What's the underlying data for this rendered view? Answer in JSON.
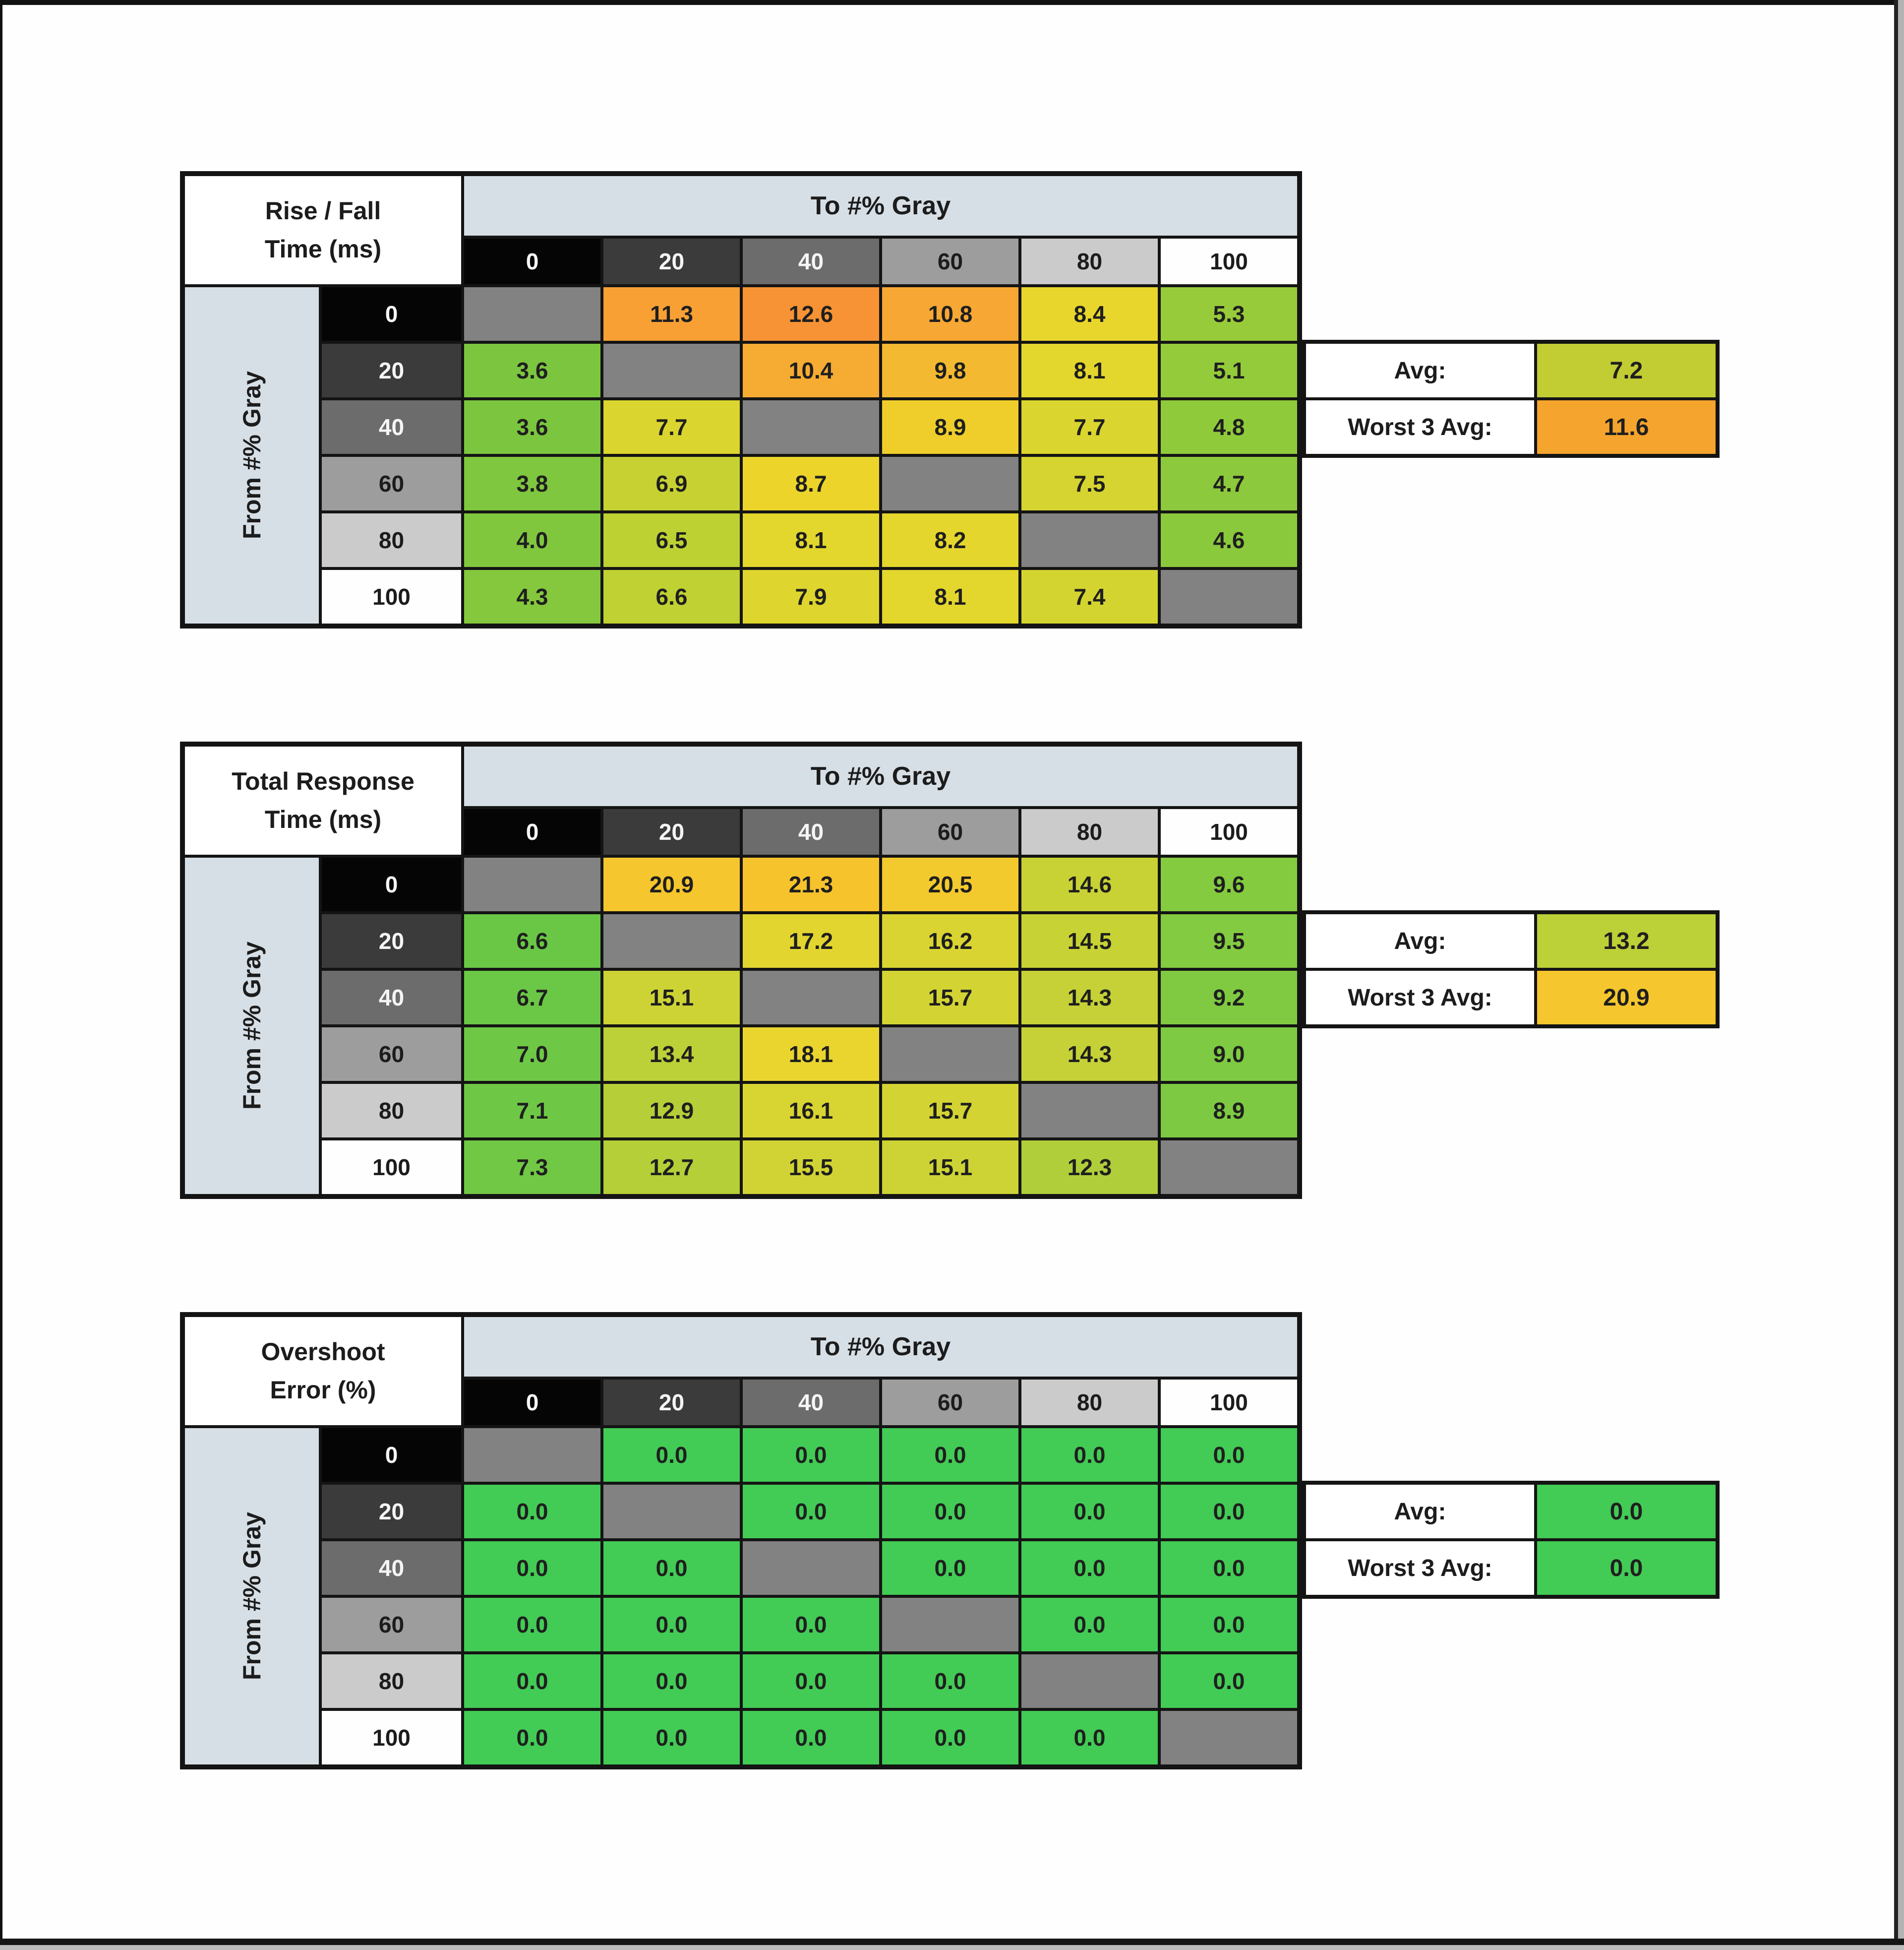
{
  "shared": {
    "to_label": "To #% Gray",
    "from_label": "From #% Gray",
    "gray_levels": [
      "0",
      "20",
      "40",
      "60",
      "80",
      "100"
    ],
    "gray_bg": [
      "#050505",
      "#3b3b3b",
      "#6c6c6c",
      "#9d9d9d",
      "#cbcbcb",
      "#fefefe"
    ],
    "gray_fg": [
      "#f5f5f5",
      "#f5f5f5",
      "#f5f5f5",
      "#1c1c1c",
      "#1c1c1c",
      "#1c1c1c"
    ],
    "avg_label": "Avg:",
    "worst_label": "Worst 3 Avg:",
    "diagonal_color": "#828282",
    "banner_color": "#d7dfe6"
  },
  "chart_data": [
    {
      "type": "heatmap",
      "title": "Rise / Fall Time (ms)",
      "title_lines": [
        "Rise / Fall",
        "Time (ms)"
      ],
      "xlabel": "To #% Gray",
      "ylabel": "From #% Gray",
      "cols": [
        "0",
        "20",
        "40",
        "60",
        "80",
        "100"
      ],
      "rows": [
        "0",
        "20",
        "40",
        "60",
        "80",
        "100"
      ],
      "values": [
        [
          null,
          "11.3",
          "12.6",
          "10.8",
          "8.4",
          "5.3"
        ],
        [
          "3.6",
          null,
          "10.4",
          "9.8",
          "8.1",
          "5.1"
        ],
        [
          "3.6",
          "7.7",
          null,
          "8.9",
          "7.7",
          "4.8"
        ],
        [
          "3.8",
          "6.9",
          "8.7",
          null,
          "7.5",
          "4.7"
        ],
        [
          "4.0",
          "6.5",
          "8.1",
          "8.2",
          null,
          "4.6"
        ],
        [
          "4.3",
          "6.6",
          "7.9",
          "8.1",
          "7.4",
          null
        ]
      ],
      "cell_colors": [
        [
          null,
          "#f8a034",
          "#f79334",
          "#f7a733",
          "#e8d62c",
          "#98cb3a"
        ],
        [
          "#7cc63f",
          null,
          "#f6ab32",
          "#f3b930",
          "#e3d62d",
          "#94cb3a"
        ],
        [
          "#7cc63f",
          "#dad52f",
          null,
          "#efce2c",
          "#dad52f",
          "#8fca3b"
        ],
        [
          "#7fc73e",
          "#c7d232",
          "#edd42b",
          null,
          "#d6d430",
          "#8dc93c"
        ],
        [
          "#81c73e",
          "#bed133",
          "#e3d62d",
          "#e4d62d",
          null,
          "#8bc93c"
        ],
        [
          "#85c83d",
          "#c0d133",
          "#ded52e",
          "#e3d62d",
          "#d4d430",
          null
        ]
      ],
      "avg": "7.2",
      "avg_color": "#c2cc33",
      "worst3_avg": "11.6",
      "worst3_color": "#f5a42d"
    },
    {
      "type": "heatmap",
      "title": "Total Response Time (ms)",
      "title_lines": [
        "Total Response",
        "Time (ms)"
      ],
      "xlabel": "To #% Gray",
      "ylabel": "From #% Gray",
      "cols": [
        "0",
        "20",
        "40",
        "60",
        "80",
        "100"
      ],
      "rows": [
        "0",
        "20",
        "40",
        "60",
        "80",
        "100"
      ],
      "values": [
        [
          null,
          "20.9",
          "21.3",
          "20.5",
          "14.6",
          "9.6"
        ],
        [
          "6.6",
          null,
          "17.2",
          "16.2",
          "14.5",
          "9.5"
        ],
        [
          "6.7",
          "15.1",
          null,
          "15.7",
          "14.3",
          "9.2"
        ],
        [
          "7.0",
          "13.4",
          "18.1",
          null,
          "14.3",
          "9.0"
        ],
        [
          "7.1",
          "12.9",
          "16.1",
          "15.7",
          null,
          "8.9"
        ],
        [
          "7.3",
          "12.7",
          "15.5",
          "15.1",
          "12.3",
          null
        ]
      ],
      "cell_colors": [
        [
          null,
          "#f5c62d",
          "#f6c32c",
          "#f3ca2d",
          "#c8d235",
          "#84cb40"
        ],
        [
          "#6ac746",
          null,
          "#e2d530",
          "#d9d432",
          "#c7d235",
          "#83cb40"
        ],
        [
          "#6bc746",
          "#cdd334",
          null,
          "#d3d433",
          "#c5d136",
          "#80ca41"
        ],
        [
          "#6ec845",
          "#bcd037",
          "#ead52f",
          null,
          "#c5d136",
          "#7eca42"
        ],
        [
          "#6fc845",
          "#b6cf38",
          "#d8d432",
          "#d3d433",
          null,
          "#7dca42"
        ],
        [
          "#71c844",
          "#b4cf38",
          "#d1d334",
          "#cdd334",
          "#afce39",
          null
        ]
      ],
      "avg": "13.2",
      "avg_color": "#bcd037",
      "worst3_avg": "20.9",
      "worst3_color": "#f5c62d"
    },
    {
      "type": "heatmap",
      "title": "Overshoot Error (%)",
      "title_lines": [
        "Overshoot",
        "Error (%)"
      ],
      "xlabel": "To #% Gray",
      "ylabel": "From #% Gray",
      "cols": [
        "0",
        "20",
        "40",
        "60",
        "80",
        "100"
      ],
      "rows": [
        "0",
        "20",
        "40",
        "60",
        "80",
        "100"
      ],
      "values": [
        [
          null,
          "0.0",
          "0.0",
          "0.0",
          "0.0",
          "0.0"
        ],
        [
          "0.0",
          null,
          "0.0",
          "0.0",
          "0.0",
          "0.0"
        ],
        [
          "0.0",
          "0.0",
          null,
          "0.0",
          "0.0",
          "0.0"
        ],
        [
          "0.0",
          "0.0",
          "0.0",
          null,
          "0.0",
          "0.0"
        ],
        [
          "0.0",
          "0.0",
          "0.0",
          "0.0",
          null,
          "0.0"
        ],
        [
          "0.0",
          "0.0",
          "0.0",
          "0.0",
          "0.0",
          null
        ]
      ],
      "cell_colors": [
        [
          null,
          "#42cb55",
          "#42cb55",
          "#42cb55",
          "#42cb55",
          "#42cb55"
        ],
        [
          "#42cb55",
          null,
          "#42cb55",
          "#42cb55",
          "#42cb55",
          "#42cb55"
        ],
        [
          "#42cb55",
          "#42cb55",
          null,
          "#42cb55",
          "#42cb55",
          "#42cb55"
        ],
        [
          "#42cb55",
          "#42cb55",
          "#42cb55",
          null,
          "#42cb55",
          "#42cb55"
        ],
        [
          "#42cb55",
          "#42cb55",
          "#42cb55",
          "#42cb55",
          null,
          "#42cb55"
        ],
        [
          "#42cb55",
          "#42cb55",
          "#42cb55",
          "#42cb55",
          "#42cb55",
          null
        ]
      ],
      "avg": "0.0",
      "avg_color": "#42cb55",
      "worst3_avg": "0.0",
      "worst3_color": "#42cb55"
    }
  ]
}
